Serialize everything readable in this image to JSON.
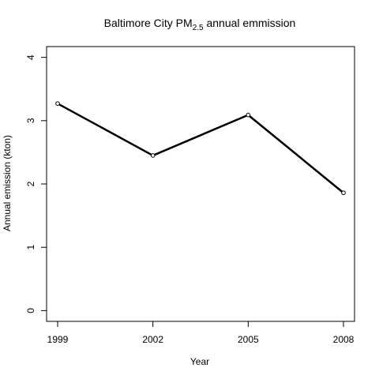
{
  "chart_data": {
    "type": "line",
    "title": {
      "prefix": "Baltimore City PM",
      "subscript": "2.5",
      "suffix": " annual emmission"
    },
    "xlabel": "Year",
    "ylabel": "Annual emission (kton)",
    "x": [
      1999,
      2002,
      2005,
      2008
    ],
    "x_tick_labels": [
      "1999",
      "2002",
      "2005",
      "2008"
    ],
    "y_ticks": [
      0,
      1,
      2,
      3,
      4
    ],
    "y_tick_labels": [
      "0",
      "1",
      "2",
      "3",
      "4"
    ],
    "ylim": [
      -0.17,
      4.17
    ],
    "grid": false,
    "series": [
      {
        "values": [
          3.27,
          2.45,
          3.09,
          1.86
        ]
      }
    ],
    "colors": {
      "line": "#000000",
      "background": "#ffffff"
    }
  }
}
